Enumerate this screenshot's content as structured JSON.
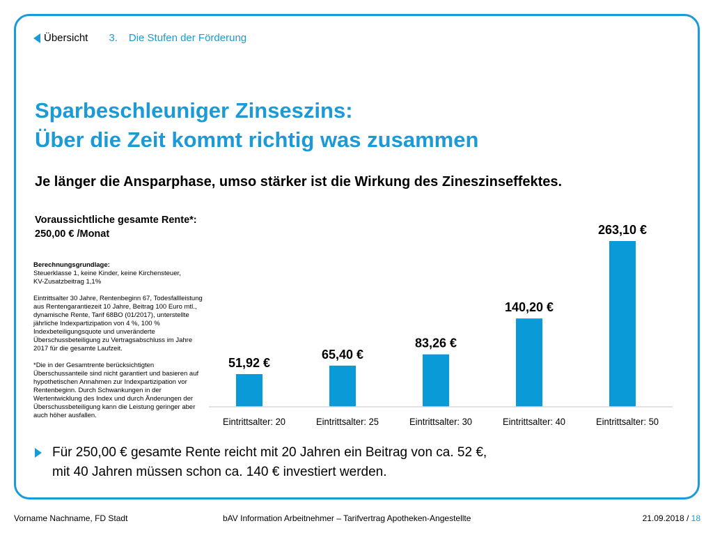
{
  "nav": {
    "overview_label": "Übersicht",
    "section_number": "3.",
    "section_title": "Die Stufen der Förderung"
  },
  "title": {
    "line1": "Sparbeschleuniger Zinseszins:",
    "line2": "Über die Zeit kommt richtig was zusammen"
  },
  "subtitle": "Je länger die Ansparphase, umso stärker ist die Wirkung des Zineszinseffektes.",
  "rente_box": {
    "line1": "Voraussichtliche gesamte Rente*:",
    "line2": "250,00 € /Monat"
  },
  "calc_notes": {
    "heading": "Berechnungsgrundlage:",
    "line1": "Steuerklasse 1, keine Kinder, keine Kirchensteuer,",
    "line2": "KV-Zusatzbeitrag 1,1%",
    "paragraph2": "Eintrittsalter 30 Jahre, Rentenbeginn 67, Todesfallleistung aus Rentengarantiezeit 10 Jahre, Beitrag 100 Euro mtl., dynamische Rente, Tarif 68BO (01/2017), unterstellte jährliche Indexpartizipation von 4 %, 100 % Indexbeteiligungsquote und unveränderte Überschussbeteiligung zu Vertragsabschluss im Jahre 2017 für die gesamte Laufzeit.",
    "paragraph3": "*Die in der Gesamtrente berücksichtigten Überschussanteile sind nicht garantiert und basieren auf hypothetischen Annahmen zur Indexpartizipation vor Rentenbeginn. Durch Schwankungen in der Wertentwicklung des Index und durch Änderungen der Überschussbeteiligung kann die Leistung geringer aber auch höher ausfallen."
  },
  "chart_data": {
    "type": "bar",
    "categories": [
      "Eintrittsalter: 20",
      "Eintrittsalter: 25",
      "Eintrittsalter: 30",
      "Eintrittsalter: 40",
      "Eintrittsalter: 50"
    ],
    "values": [
      51.92,
      65.4,
      83.26,
      140.2,
      263.1
    ],
    "data_labels": [
      "51,92 €",
      "65,40 €",
      "83,26 €",
      "140,20 €",
      "263,10 €"
    ],
    "unit": "€",
    "bar_color": "#0a9ad8",
    "title": "",
    "xlabel": "",
    "ylabel": ""
  },
  "bullet": {
    "line1": "Für 250,00 € gesamte Rente reicht mit 20 Jahren ein Beitrag von ca. 52 €,",
    "line2": "mit 40 Jahren müssen schon ca. 140 € investiert werden."
  },
  "footer": {
    "left": "Vorname Nachname, FD Stadt",
    "center": "bAV Information Arbeitnehmer – Tarifvertrag Apotheken-Angestellte",
    "date": "21.09.2018",
    "separator": " / ",
    "page": "18"
  },
  "colors": {
    "accent": "#1a9ad6"
  }
}
